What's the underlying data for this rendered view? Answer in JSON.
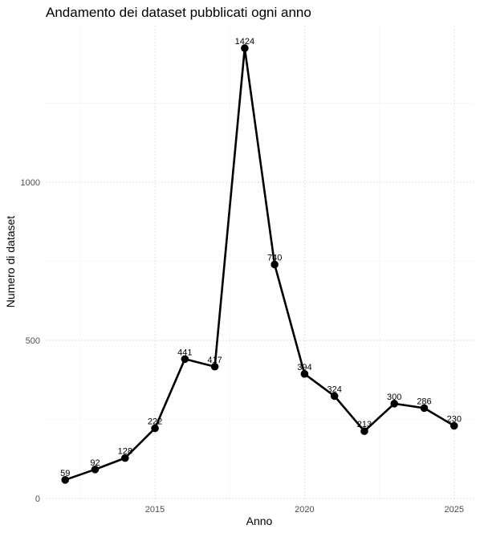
{
  "chart_data": {
    "type": "line",
    "title": "Andamento dei dataset pubblicati ogni anno",
    "xlabel": "Anno",
    "ylabel": "Numero di dataset",
    "x": [
      2012,
      2013,
      2014,
      2015,
      2016,
      2017,
      2018,
      2019,
      2020,
      2021,
      2022,
      2023,
      2024,
      2025
    ],
    "series": [
      {
        "values": [
          59,
          92,
          128,
          222,
          441,
          417,
          1424,
          740,
          394,
          324,
          213,
          300,
          286,
          230
        ]
      }
    ],
    "data_labels": [
      "59",
      "92",
      "128",
      "222",
      "441",
      "417",
      "1424",
      "740",
      "394",
      "324",
      "213",
      "300",
      "286",
      "230"
    ],
    "xlim": [
      2011.35,
      2025.65
    ],
    "ylim": [
      -10,
      1495
    ],
    "x_ticks": [
      2015,
      2020,
      2025
    ],
    "x_tick_labels": [
      "2015",
      "2020",
      "2025"
    ],
    "y_ticks": [
      0,
      500,
      1000
    ],
    "y_tick_labels": [
      "0",
      "500",
      "1000"
    ],
    "x_minor_ticks": [
      2012.5,
      2017.5,
      2022.5
    ],
    "y_minor_ticks": [
      250,
      750,
      1250
    ],
    "grid": true,
    "legend": "none",
    "colors": {
      "line": "#000000",
      "grid": "#d9d9d9",
      "tick_text": "#4d4d4d"
    }
  }
}
